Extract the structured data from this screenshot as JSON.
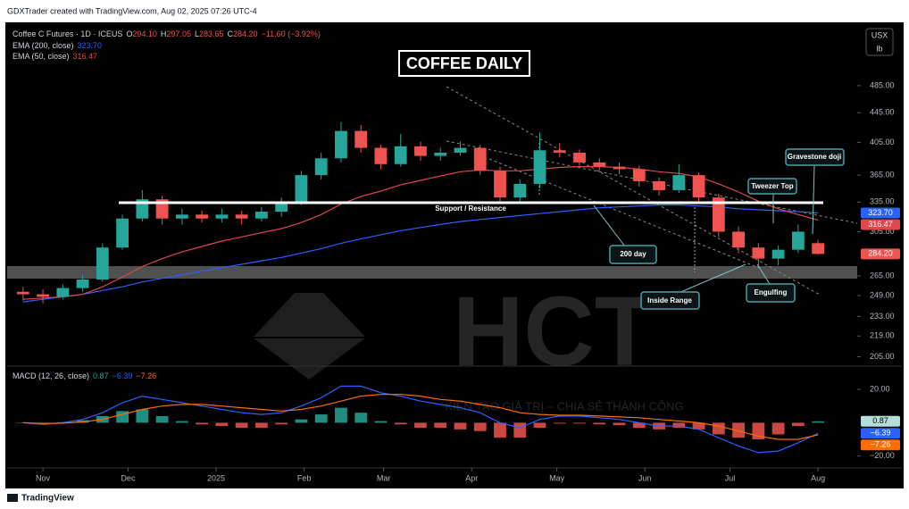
{
  "header": {
    "credit": "GDXTrader created with TradingView.com, Aug 02, 2025 07:26 UTC-4",
    "footer": "TradingView"
  },
  "chart_data": {
    "type": "candlestick",
    "title": "COFFEE DAILY",
    "symbol": "Coffee C Futures · 1D · ICEUS",
    "ohlc_legend": [
      {
        "label": "O",
        "value": "294.10"
      },
      {
        "label": "H",
        "value": "297.05"
      },
      {
        "label": "L",
        "value": "283.65"
      },
      {
        "label": "C",
        "value": "284.20"
      }
    ],
    "change": "−11.60 (−3.92%)",
    "currency": "USX",
    "unit": "lb",
    "log_scale": true,
    "grid": false,
    "up_color": "#26a69a",
    "down_color": "#ef5350",
    "x": [
      -7,
      0,
      7,
      14,
      21,
      28,
      35,
      42,
      49,
      56,
      63,
      70,
      77,
      84,
      91,
      98,
      105,
      112,
      119,
      126,
      133,
      140,
      147,
      154,
      161,
      168,
      175,
      182,
      189,
      196,
      203,
      210,
      217,
      224,
      231,
      238,
      245,
      252,
      259,
      266,
      273
    ],
    "xlim": [
      -12.6,
      286.8
    ],
    "xticks": [
      {
        "value": 0,
        "label": "Nov"
      },
      {
        "value": 30,
        "label": "Dec"
      },
      {
        "value": 61,
        "label": "2025"
      },
      {
        "value": 92,
        "label": "Feb"
      },
      {
        "value": 120,
        "label": "Mar"
      },
      {
        "value": 151,
        "label": "Apr"
      },
      {
        "value": 181,
        "label": "May"
      },
      {
        "value": 212,
        "label": "Jun"
      },
      {
        "value": 242,
        "label": "Jul"
      },
      {
        "value": 273,
        "label": "Aug"
      }
    ],
    "ylim": [
      199,
      588
    ],
    "yticks": [
      {
        "value": 485,
        "label": "485.00"
      },
      {
        "value": 445,
        "label": "445.00"
      },
      {
        "value": 405,
        "label": "405.00"
      },
      {
        "value": 365,
        "label": "365.00"
      },
      {
        "value": 335,
        "label": "335.00"
      },
      {
        "value": 305,
        "label": "305.00"
      },
      {
        "value": 265,
        "label": "265.00"
      },
      {
        "value": 249,
        "label": "249.00"
      },
      {
        "value": 233,
        "label": "233.00"
      },
      {
        "value": 219,
        "label": "219.00"
      },
      {
        "value": 205,
        "label": "205.00"
      }
    ],
    "open": [
      252,
      250,
      248,
      255,
      262,
      290,
      318,
      338,
      318,
      322,
      318,
      322,
      318,
      325,
      335,
      365,
      385,
      420,
      398,
      378,
      400,
      388,
      392,
      398,
      370,
      340,
      355,
      395,
      392,
      380,
      375,
      372,
      358,
      348,
      365,
      340,
      305,
      290,
      280,
      288,
      294.1
    ],
    "high": [
      256,
      254,
      258,
      266,
      294,
      322,
      348,
      342,
      328,
      326,
      328,
      326,
      330,
      340,
      370,
      392,
      432,
      428,
      402,
      416,
      406,
      398,
      406,
      402,
      375,
      360,
      418,
      404,
      396,
      385,
      380,
      376,
      362,
      378,
      368,
      344,
      310,
      294,
      292,
      312,
      297.05
    ],
    "low": [
      245,
      243,
      246,
      252,
      260,
      288,
      315,
      312,
      312,
      314,
      314,
      312,
      315,
      320,
      332,
      360,
      380,
      392,
      372,
      375,
      382,
      382,
      388,
      365,
      335,
      334,
      350,
      386,
      376,
      370,
      366,
      352,
      342,
      345,
      335,
      300,
      285,
      272,
      274,
      285,
      283.65
    ],
    "close": [
      250,
      248,
      255,
      262,
      290,
      318,
      338,
      318,
      322,
      318,
      322,
      318,
      325,
      335,
      365,
      385,
      420,
      398,
      378,
      400,
      388,
      392,
      398,
      370,
      340,
      355,
      395,
      392,
      380,
      375,
      372,
      358,
      348,
      365,
      340,
      305,
      290,
      280,
      288,
      305,
      284.2
    ],
    "close_label": "284.20",
    "lines": [
      {
        "name": "EMA (200, close)",
        "value_label": "323.70",
        "color": "#2962ff",
        "values": [
          244,
          246,
          248,
          250,
          253,
          256,
          260,
          263,
          266,
          269,
          272,
          275,
          278,
          281,
          285,
          289,
          294,
          298,
          302,
          306,
          309,
          312,
          315,
          317,
          319,
          321,
          323,
          325,
          327,
          329,
          330,
          331,
          332,
          332,
          331,
          330,
          328,
          327,
          326,
          325,
          323.7
        ]
      },
      {
        "name": "EMA (50, close)",
        "value_label": "316.47",
        "color": "#e0464b",
        "values": [
          246,
          247,
          248,
          250,
          256,
          264,
          273,
          280,
          286,
          291,
          296,
          300,
          304,
          308,
          314,
          322,
          333,
          341,
          347,
          354,
          359,
          364,
          369,
          371,
          370,
          370,
          372,
          374,
          375,
          375,
          374,
          372,
          369,
          367,
          363,
          355,
          346,
          336,
          328,
          322,
          316.47
        ]
      }
    ],
    "annotations": {
      "support": "Support / Resistance",
      "ema200": "200 day",
      "inside": "Inside Range",
      "engulfing": "Engulfing",
      "tweezer": "Tweezer Top",
      "doji": "Gravestone doji"
    },
    "watermark": {
      "logo": "HCT",
      "tagline": "KIẾN TẠO GIÁ TRỊ – CHIA SẺ THÀNH CÔNG"
    },
    "macd": {
      "title": "MACD (12, 26, close)",
      "ylim": [
        -25,
        34
      ],
      "yticks": [
        {
          "value": 20,
          "label": "20.00"
        },
        {
          "value": -20,
          "label": "−20.00"
        }
      ],
      "histogram": {
        "value_label": "0.87",
        "up_color": "#26a69a",
        "down_color": "#ef5350",
        "values": [
          0,
          -0.5,
          0.3,
          1.5,
          4,
          7,
          8,
          4,
          1,
          -1,
          -2,
          -3,
          -3,
          -1,
          2,
          5,
          9,
          6,
          1,
          -1,
          -3,
          -3,
          -4,
          -5,
          -9,
          -9,
          -3,
          -0.5,
          -0.5,
          -1,
          -1.5,
          -3,
          -4,
          -3,
          -4,
          -7,
          -9,
          -10,
          -7,
          -2,
          0.87
        ]
      },
      "macd_line": {
        "value_label": "−6.39",
        "color": "#2962ff",
        "values": [
          0,
          -1,
          0,
          2,
          6,
          12,
          16,
          14,
          12,
          10,
          8,
          6,
          5,
          6,
          10,
          15,
          22,
          22,
          18,
          16,
          13,
          11,
          9,
          6,
          0,
          -3,
          2,
          4,
          4,
          3,
          2,
          0,
          -2,
          -2,
          -4,
          -9,
          -14,
          -18,
          -17,
          -12,
          -6.39
        ]
      },
      "signal_line": {
        "value_label": "−7.26",
        "color": "#ff6d00",
        "values": [
          0,
          -0.5,
          -0.3,
          0.5,
          2,
          5,
          8,
          10,
          11,
          11,
          10,
          9,
          8,
          7,
          8,
          10,
          13,
          16,
          17,
          17,
          16,
          14,
          13,
          11,
          9,
          6,
          5,
          4.5,
          4.5,
          4,
          3.5,
          3,
          2,
          1,
          0,
          -2,
          -5,
          -8,
          -10,
          -10,
          -7.26
        ]
      }
    }
  }
}
